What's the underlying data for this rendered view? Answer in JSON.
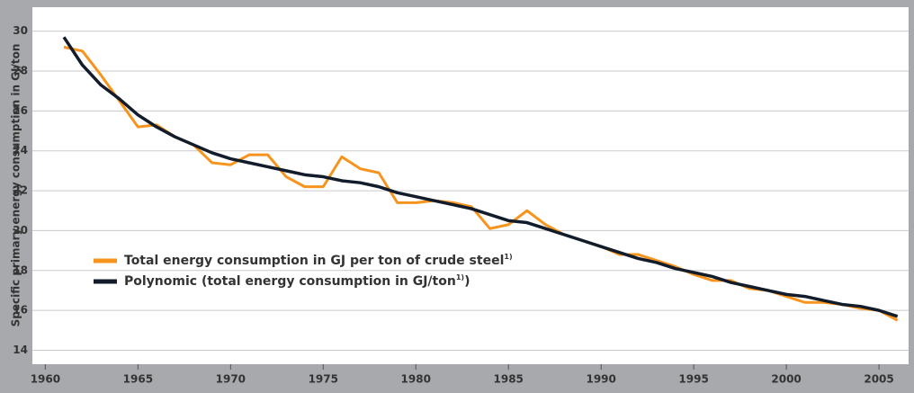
{
  "chart_data": {
    "type": "line",
    "y_label": "Specific primary energy consumption in GJ/ton",
    "x": [
      1961,
      1962,
      1963,
      1964,
      1965,
      1966,
      1967,
      1968,
      1969,
      1970,
      1971,
      1972,
      1973,
      1974,
      1975,
      1976,
      1977,
      1978,
      1979,
      1980,
      1981,
      1982,
      1983,
      1984,
      1985,
      1986,
      1987,
      1988,
      1989,
      1990,
      1991,
      1992,
      1993,
      1994,
      1995,
      1996,
      1997,
      1998,
      1999,
      2000,
      2001,
      2002,
      2003,
      2004,
      2005,
      2006
    ],
    "series": [
      {
        "name": "Total energy consumption in GJ per ton of crude steel1)",
        "color": "#f7941d",
        "values": [
          29.2,
          29.0,
          27.8,
          26.5,
          25.2,
          25.3,
          24.7,
          24.3,
          23.4,
          23.3,
          23.8,
          23.8,
          22.7,
          22.2,
          22.2,
          23.7,
          23.1,
          22.9,
          21.4,
          21.4,
          21.5,
          21.4,
          21.2,
          20.1,
          20.3,
          21.0,
          20.3,
          19.8,
          19.5,
          19.2,
          18.8,
          18.8,
          18.5,
          18.2,
          17.8,
          17.5,
          17.5,
          17.1,
          17.0,
          16.7,
          16.4,
          16.4,
          16.3,
          16.1,
          16.0,
          15.5
        ]
      },
      {
        "name": "Polynomic (total energy consumption in GJ/ton1))",
        "color": "#121c2b",
        "values": [
          29.7,
          28.3,
          27.3,
          26.6,
          25.8,
          25.2,
          24.7,
          24.3,
          23.9,
          23.6,
          23.4,
          23.2,
          23.0,
          22.8,
          22.7,
          22.5,
          22.4,
          22.2,
          21.9,
          21.7,
          21.5,
          21.3,
          21.1,
          20.8,
          20.5,
          20.4,
          20.1,
          19.8,
          19.5,
          19.2,
          18.9,
          18.6,
          18.4,
          18.1,
          17.9,
          17.7,
          17.4,
          17.2,
          17.0,
          16.8,
          16.7,
          16.5,
          16.3,
          16.2,
          16.0,
          15.7
        ]
      }
    ],
    "xlim": [
      1959.3,
      2006.6
    ],
    "xticks": [
      1960,
      1965,
      1970,
      1975,
      1980,
      1985,
      1990,
      1995,
      2000,
      2005
    ],
    "ylim": [
      13.3,
      30.3
    ],
    "yticks": [
      14,
      16,
      18,
      20,
      22,
      24,
      26,
      28,
      30
    ],
    "grid": true,
    "legend": "lower left"
  }
}
